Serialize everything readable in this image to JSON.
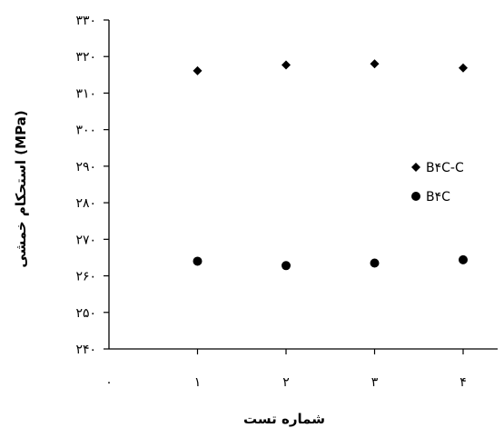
{
  "chart_data": {
    "type": "scatter",
    "title": "",
    "xlabel": "شماره تست",
    "ylabel": "استحکام خمشی  (MPa)",
    "x_tick_labels": [
      "۰",
      "۱",
      "۲",
      "۳",
      "۴"
    ],
    "y_tick_labels": [
      "۲۴۰",
      "۲۵۰",
      "۲۶۰",
      "۲۷۰",
      "۲۸۰",
      "۲۹۰",
      "۳۰۰",
      "۳۱۰",
      "۳۲۰",
      "۳۳۰"
    ],
    "x_ticks": [
      0,
      1,
      2,
      3,
      4
    ],
    "y_ticks": [
      240,
      250,
      260,
      270,
      280,
      290,
      300,
      310,
      320,
      330
    ],
    "xlim": [
      0,
      4.4
    ],
    "ylim": [
      240,
      330
    ],
    "grid": false,
    "legend_position": "right",
    "series": [
      {
        "name": "B۴C-C",
        "marker": "diamond",
        "color": "#000000",
        "x": [
          1,
          2,
          3,
          4
        ],
        "y": [
          316.1,
          317.7,
          318.0,
          316.9
        ]
      },
      {
        "name": "B۴C",
        "marker": "circle",
        "color": "#000000",
        "x": [
          1,
          2,
          3,
          4
        ],
        "y": [
          264.0,
          262.8,
          263.5,
          264.4
        ]
      }
    ]
  }
}
